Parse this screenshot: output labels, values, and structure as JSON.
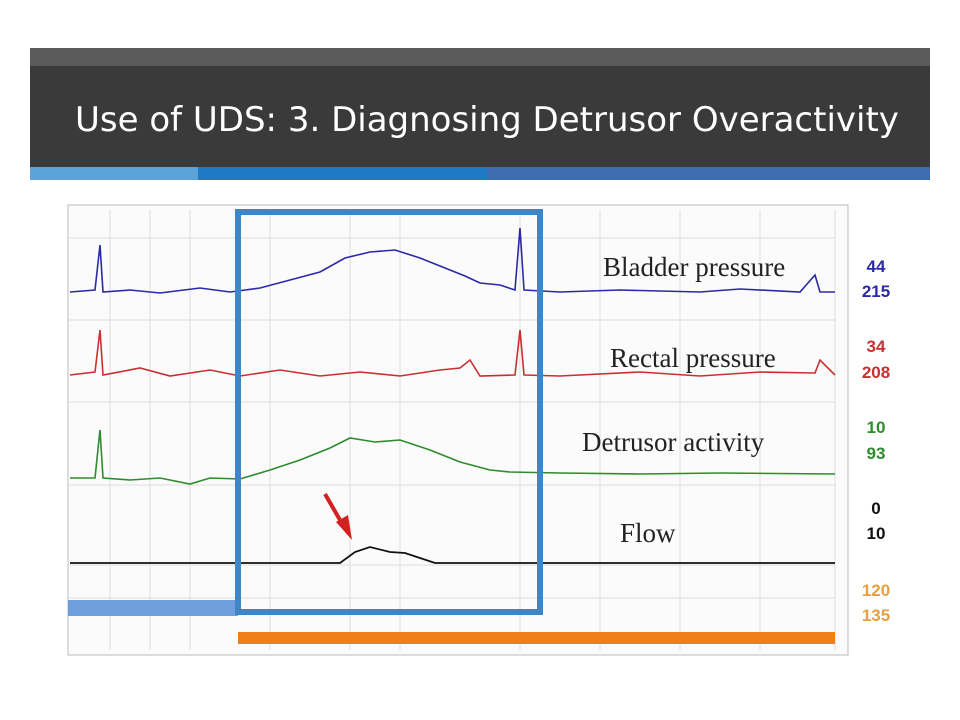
{
  "header": {
    "title": "Use of UDS: 3. Diagnosing Detrusor Overactivity"
  },
  "tracing": {
    "channels": [
      {
        "label": "Bladder pressure",
        "readouts": [
          44,
          215
        ]
      },
      {
        "label": "Rectal pressure",
        "readouts": [
          34,
          208
        ]
      },
      {
        "label": "Detrusor activity",
        "readouts": [
          10,
          93
        ]
      },
      {
        "label": "Flow",
        "readouts": [
          0,
          10
        ]
      },
      {
        "label": null,
        "readouts": [
          120,
          135
        ]
      }
    ]
  }
}
